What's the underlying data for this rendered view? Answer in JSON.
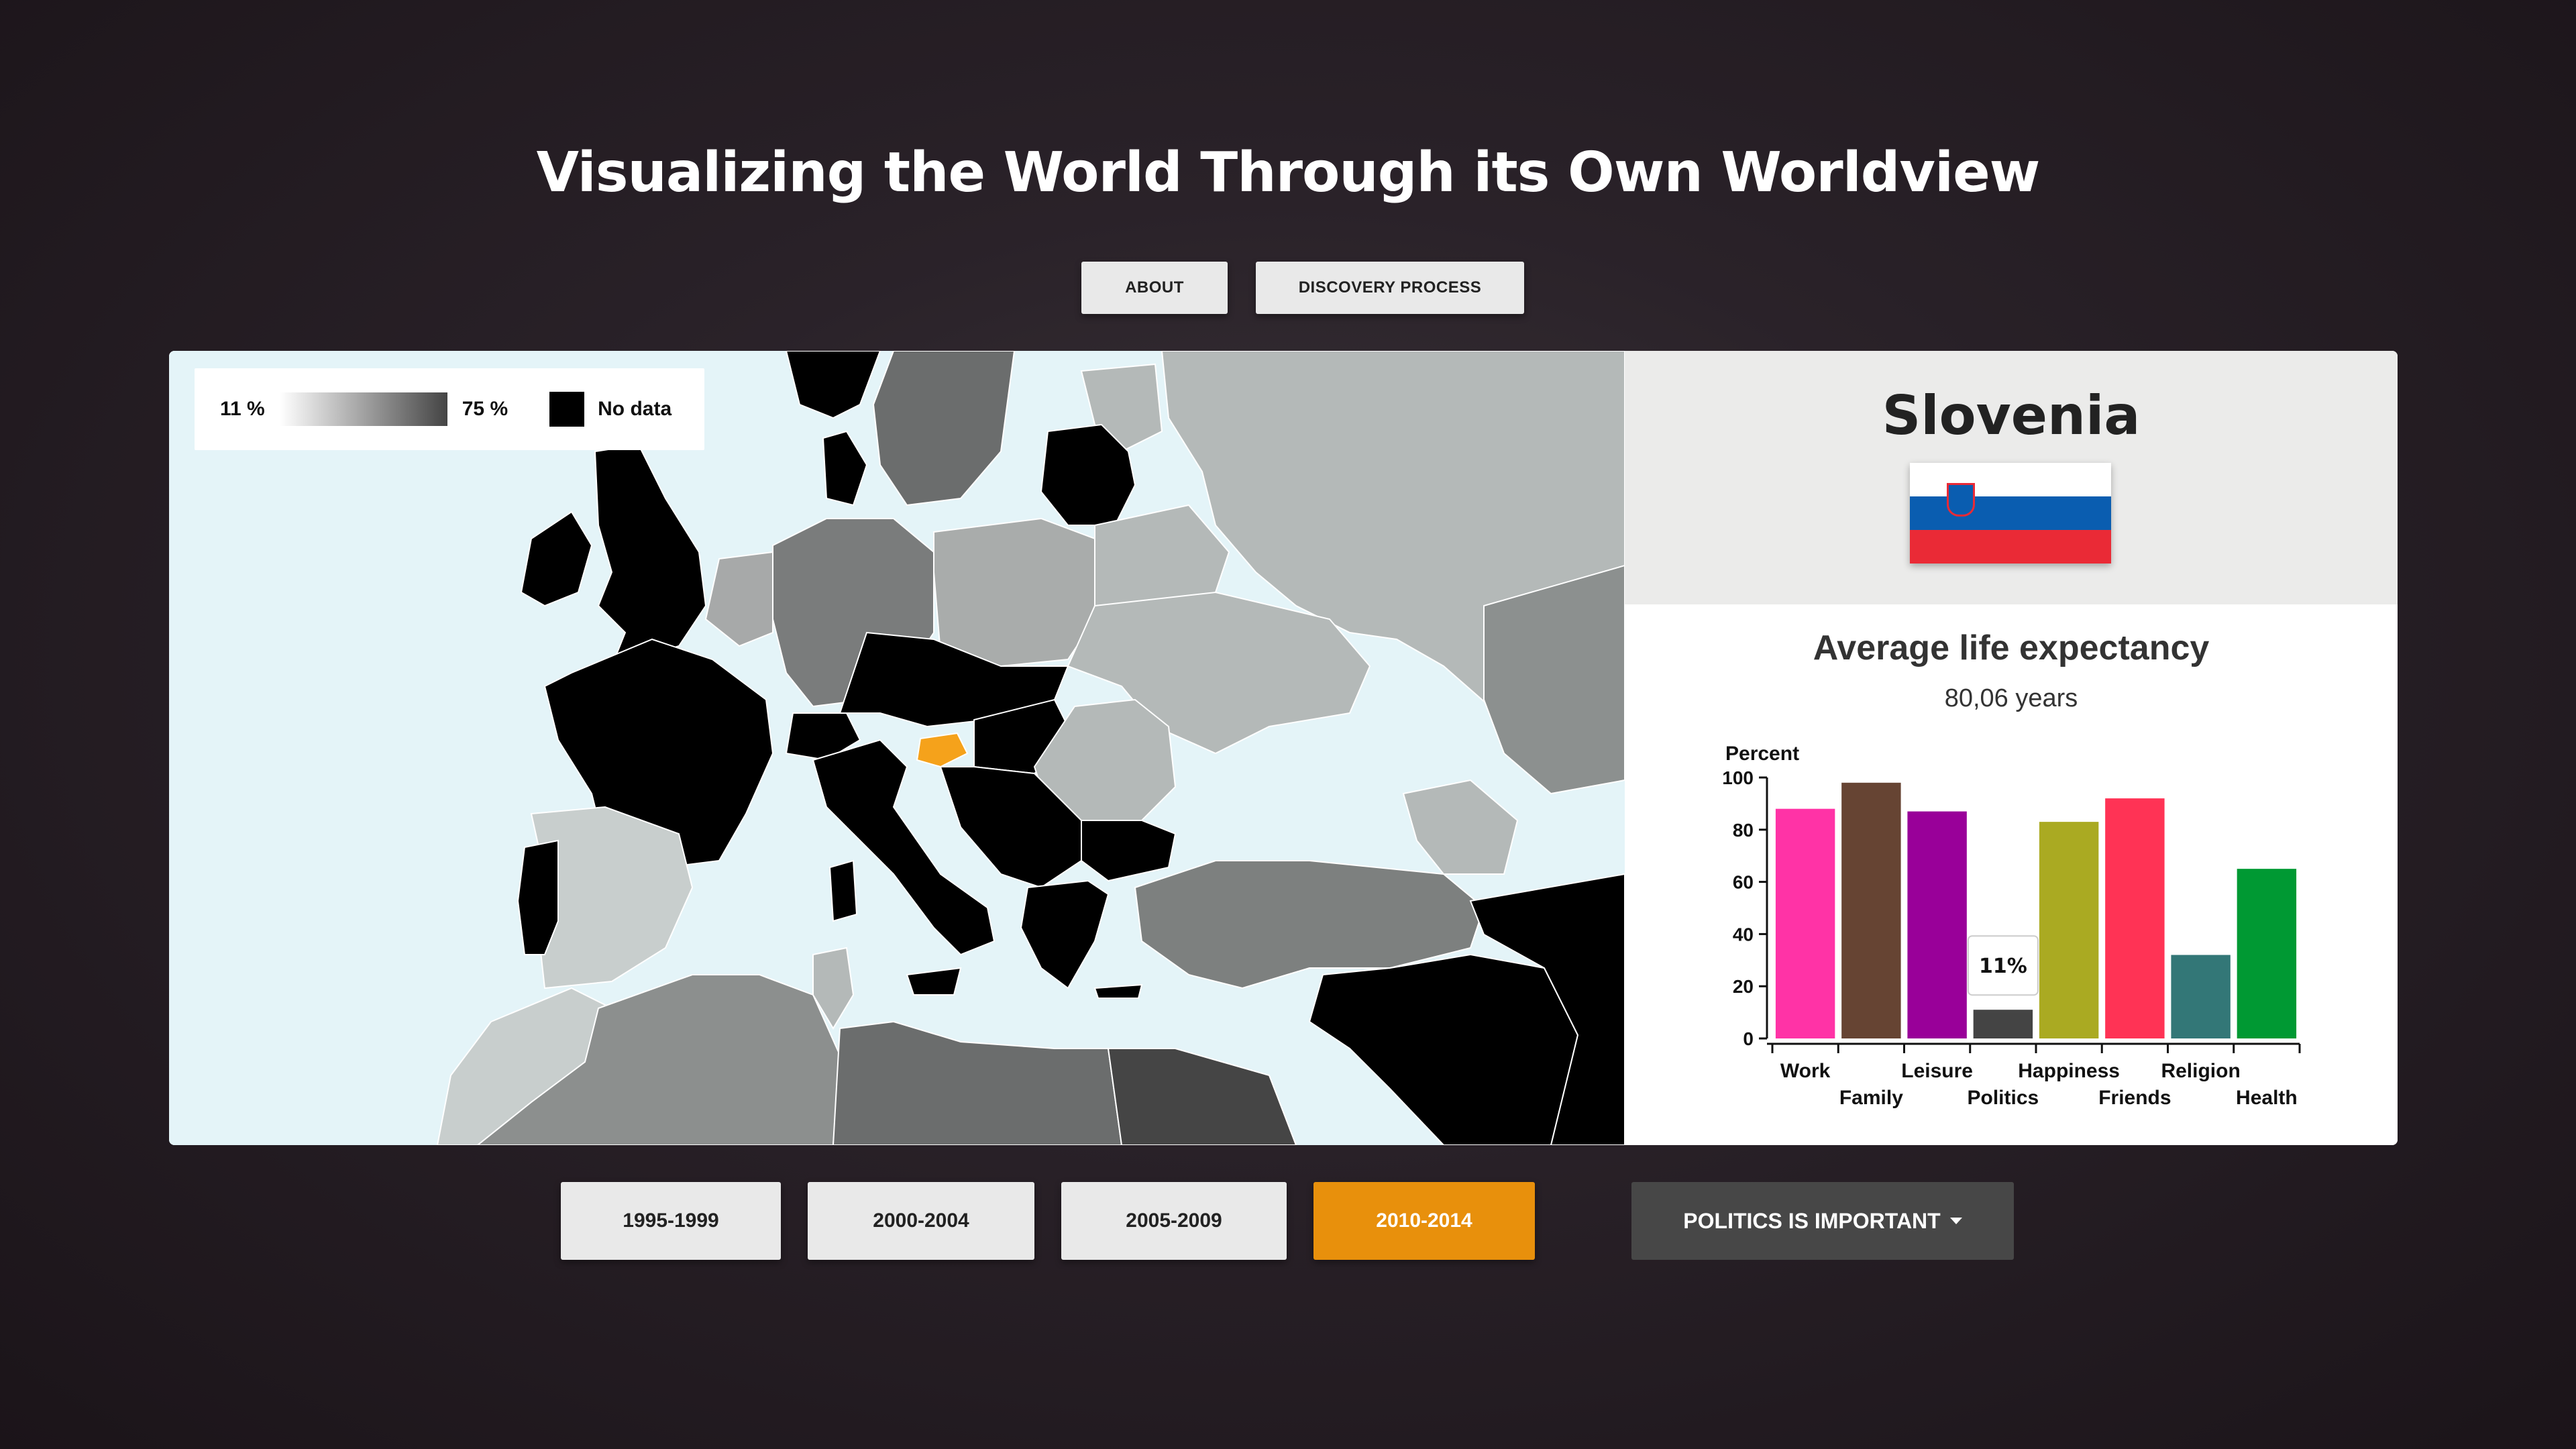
{
  "page_title": "Visualizing the World Through its Own Worldview",
  "nav": {
    "about": "ABOUT",
    "discovery": "DISCOVERY PROCESS"
  },
  "legend": {
    "min_label": "11 %",
    "max_label": "75 %",
    "nodata_label": "No data"
  },
  "country": {
    "name": "Slovenia",
    "flag_colors": [
      "#ffffff",
      "#0a5db0",
      "#ea2a36"
    ],
    "metric_title": "Average life expectancy",
    "metric_value": "80,06 years",
    "highlight_color": "#f5a21b"
  },
  "chart_data": {
    "type": "bar",
    "ylabel": "Percent",
    "ylim": [
      0,
      100
    ],
    "yticks": [
      0,
      20,
      40,
      60,
      80,
      100
    ],
    "categories": [
      "Work",
      "Family",
      "Leisure",
      "Politics",
      "Happiness",
      "Friends",
      "Religion",
      "Health"
    ],
    "values": [
      88,
      98,
      87,
      11,
      83,
      92,
      32,
      65
    ],
    "colors": [
      "#ff33a6",
      "#664433",
      "#990099",
      "#444444",
      "#aaaa22",
      "#ff3355",
      "#337777",
      "#009933"
    ],
    "tooltip": "11%",
    "highlighted": "Politics"
  },
  "years": [
    "1995-1999",
    "2000-2004",
    "2005-2009",
    "2010-2014"
  ],
  "active_year": "2010-2014",
  "dropdown_label": "POLITICS IS IMPORTANT",
  "colors": {
    "accent": "#e8900c",
    "dropdown": "#474747",
    "sea": "#e4f4f8"
  }
}
